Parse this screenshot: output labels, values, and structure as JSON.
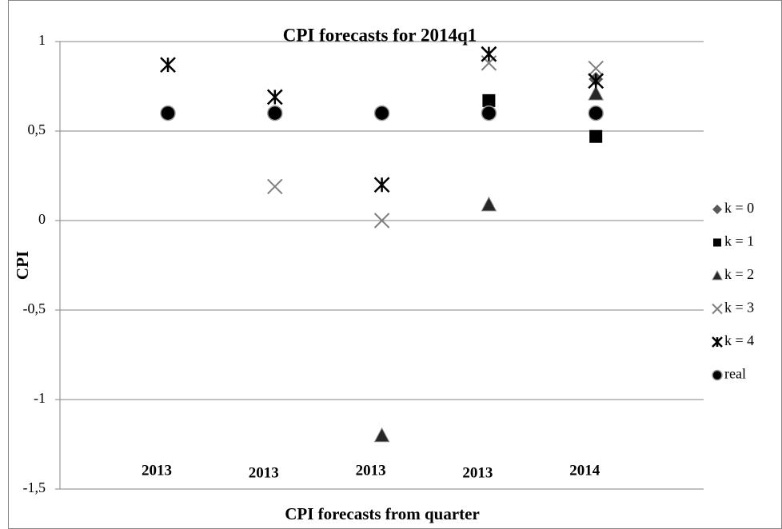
{
  "chart_data": {
    "type": "scatter",
    "title": "CPI forecasts for 2014q1",
    "x_label": "CPI forecasts from quarter",
    "y_label": "CPI",
    "categories": [
      "2013",
      "2013",
      "2013",
      "2013",
      "2014"
    ],
    "ylim": [
      -1.5,
      1
    ],
    "yticks": [
      {
        "value": 1,
        "label": "1"
      },
      {
        "value": 0.5,
        "label": "0,5"
      },
      {
        "value": 0,
        "label": "0"
      },
      {
        "value": -0.5,
        "label": "-0,5"
      },
      {
        "value": -1,
        "label": "-1"
      },
      {
        "value": -1.5,
        "label": "-1,5"
      }
    ],
    "grid": true,
    "legend": "right",
    "series": [
      {
        "name": "k = 0",
        "color": "#595959",
        "marker": "diamond",
        "values": [
          null,
          null,
          null,
          null,
          0.79
        ]
      },
      {
        "name": "k = 1",
        "color": "#000000",
        "marker": "square",
        "values": [
          null,
          null,
          null,
          0.67,
          0.47
        ]
      },
      {
        "name": "k = 2",
        "color": "#262626",
        "marker": "triangle",
        "values": [
          null,
          null,
          -1.2,
          0.09,
          0.71
        ]
      },
      {
        "name": "k = 3",
        "color": "#7f7f7f",
        "marker": "x",
        "values": [
          null,
          0.19,
          0,
          0.88,
          0.85
        ]
      },
      {
        "name": "k = 4",
        "color": "#000000",
        "marker": "asterisk",
        "values": [
          0.87,
          0.69,
          0.2,
          0.93,
          0.78
        ]
      },
      {
        "name": "real",
        "color": "#000000",
        "marker": "circle",
        "values": [
          0.6,
          0.6,
          0.6,
          0.6,
          0.6
        ]
      }
    ]
  }
}
